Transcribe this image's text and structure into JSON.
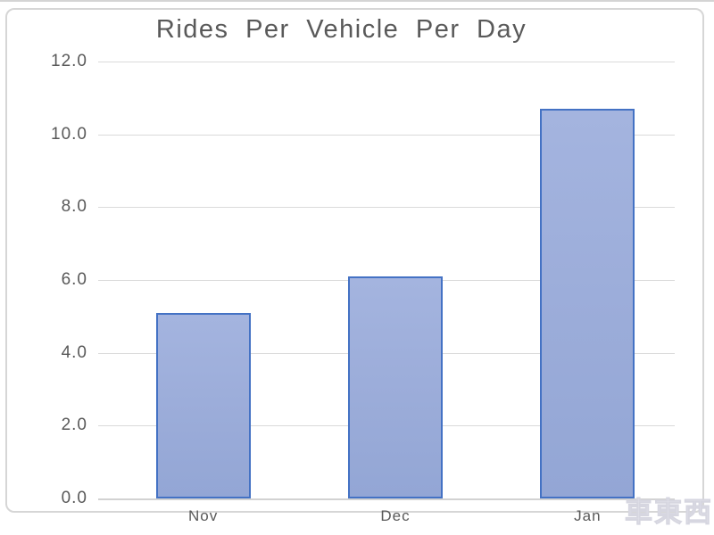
{
  "chart_data": {
    "type": "bar",
    "title": "Rides Per Vehicle Per Day",
    "categories": [
      "Nov",
      "Dec",
      "Jan"
    ],
    "values": [
      5.1,
      6.1,
      10.7
    ],
    "xlabel": "",
    "ylabel": "",
    "ylim": [
      0,
      12
    ],
    "yticks": [
      {
        "value": 12,
        "label": "12.0"
      },
      {
        "value": 10,
        "label": "10.0"
      },
      {
        "value": 8,
        "label": "8.0"
      },
      {
        "value": 6,
        "label": "6.0"
      },
      {
        "value": 4,
        "label": "4.0"
      },
      {
        "value": 2,
        "label": "2.0"
      },
      {
        "value": 0,
        "label": "0.0"
      }
    ],
    "grid": true,
    "legend": "none"
  },
  "colors": {
    "bar_fill": "#9badda",
    "bar_border": "#4472c4",
    "gridline": "#dadada",
    "axis_text": "#595959",
    "frame_border": "#d6d6d6",
    "watermark": "#e4e4ec"
  },
  "watermark": {
    "text": "車東西"
  }
}
